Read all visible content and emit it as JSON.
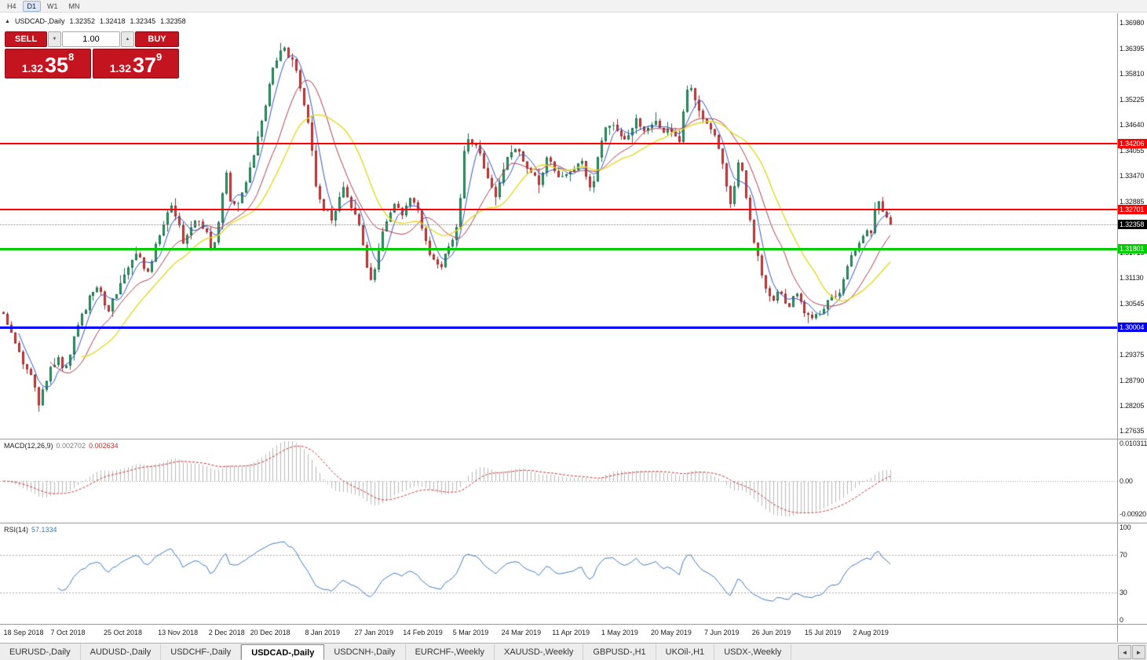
{
  "toolbar": {
    "timeframes": [
      {
        "label": "H4",
        "active": false
      },
      {
        "label": "D1",
        "active": true
      },
      {
        "label": "W1",
        "active": false
      },
      {
        "label": "MN",
        "active": false
      }
    ]
  },
  "header": {
    "collapse_icon": "▲",
    "symbol": "USDCAD-,Daily",
    "open": "1.32352",
    "high": "1.32418",
    "low": "1.32345",
    "close": "1.32358"
  },
  "trade_panel": {
    "sell_label": "SELL",
    "buy_label": "BUY",
    "volume": "1.00",
    "spin_down_icon": "▼",
    "spin_up_icon": "▲",
    "panel_red": "#c41420",
    "sell_price": {
      "prefix": "1.32",
      "big": "35",
      "sup": "8"
    },
    "buy_price": {
      "prefix": "1.32",
      "big": "37",
      "sup": "9"
    }
  },
  "chart": {
    "scale": {
      "max": 1.372,
      "min": 1.2745
    },
    "price_axis_labels": [
      "1.36980",
      "1.36395",
      "1.35810",
      "1.35225",
      "1.34640",
      "1.34055",
      "1.33470",
      "1.32885",
      "1.32300",
      "1.31715",
      "1.31130",
      "1.30545",
      "1.29960",
      "1.29375",
      "1.28790",
      "1.28205",
      "1.27635"
    ],
    "hlines": [
      {
        "value": 1.34206,
        "label": "1.34206",
        "color": "#ff0000",
        "width": 2
      },
      {
        "value": 1.32701,
        "label": "1.32701",
        "color": "#ff0000",
        "width": 2
      },
      {
        "value": 1.31801,
        "label": "1.31801",
        "color": "#00cc00",
        "width": 3
      },
      {
        "value": 1.30004,
        "label": "1.30004",
        "color": "#0000ff",
        "width": 3
      }
    ],
    "current_price": {
      "value": 1.32358,
      "label": "1.32358",
      "badge_bg": "#000000",
      "line_color": "#909090"
    },
    "date_axis": {
      "labels": [
        "18 Sep 2018",
        "7 Oct 2018",
        "25 Oct 2018",
        "13 Nov 2018",
        "2 Dec 2018",
        "20 Dec 2018",
        "8 Jan 2019",
        "27 Jan 2019",
        "14 Feb 2019",
        "5 Mar 2019",
        "24 Mar 2019",
        "11 Apr 2019",
        "1 May 2019",
        "20 May 2019",
        "7 Jun 2019",
        "26 Jun 2019",
        "15 Jul 2019",
        "2 Aug 2019"
      ],
      "fracs": [
        0.0,
        0.073,
        0.135,
        0.197,
        0.252,
        0.301,
        0.36,
        0.418,
        0.473,
        0.527,
        0.584,
        0.64,
        0.695,
        0.753,
        0.81,
        0.866,
        0.924,
        0.978
      ]
    }
  },
  "indicators": {
    "macd": {
      "name": "MACD(12,26,9)",
      "value_main": "0.002702",
      "value_signal": "0.002634",
      "axis": [
        {
          "label": "0.010311",
          "v": 0.010311
        },
        {
          "label": "0.00",
          "v": 0
        },
        {
          "label": "-0.00920",
          "v": -0.0092
        }
      ],
      "range": {
        "max": 0.0115,
        "min": -0.0115
      },
      "colors": {
        "histogram": "#b8b8b8",
        "signal": "#cc2e2e",
        "zero": "#999999"
      }
    },
    "rsi": {
      "name": "RSI(14)",
      "value": "57.1334",
      "period": 14,
      "axis": [
        {
          "label": "100",
          "v": 100
        },
        {
          "label": "70",
          "v": 70
        },
        {
          "label": "30",
          "v": 30
        },
        {
          "label": "0",
          "v": 0
        }
      ],
      "levels": [
        70,
        30
      ],
      "colors": {
        "line": "#3e7bbf",
        "levels": "#cc9999"
      }
    }
  },
  "chart_data": {
    "type": "candlestick",
    "symbol": "USDCAD",
    "timeframe": "Daily",
    "x_range": [
      "18 Sep 2018",
      "13 Aug 2019"
    ],
    "price_range": [
      1.2745,
      1.372
    ],
    "approx_high": 1.3666,
    "approx_low": 1.278,
    "candle_count": 228,
    "last_close": 1.32358,
    "up_color": "#2ea471",
    "up_border": "#1d6f4c",
    "down_color": "#df4242",
    "down_border": "#9e2b2b",
    "moving_averages": [
      {
        "period": 5,
        "color": "#3353c8",
        "width": 1
      },
      {
        "period": 13,
        "color": "#b03a4a",
        "width": 1
      },
      {
        "period": 21,
        "color": "#e3d824",
        "width": 1.4
      }
    ],
    "noise": {
      "seed": 9,
      "close": 0.0016,
      "wick": 0.0022
    },
    "trend_anchors": [
      [
        0.0,
        1.3035
      ],
      [
        0.01,
        1.2975
      ],
      [
        0.022,
        1.292
      ],
      [
        0.032,
        1.288
      ],
      [
        0.04,
        1.2825
      ],
      [
        0.05,
        1.289
      ],
      [
        0.06,
        1.293
      ],
      [
        0.07,
        1.2905
      ],
      [
        0.08,
        1.2985
      ],
      [
        0.095,
        1.306
      ],
      [
        0.105,
        1.31
      ],
      [
        0.118,
        1.3035
      ],
      [
        0.135,
        1.312
      ],
      [
        0.15,
        1.3175
      ],
      [
        0.163,
        1.3125
      ],
      [
        0.178,
        1.323
      ],
      [
        0.19,
        1.329
      ],
      [
        0.203,
        1.3195
      ],
      [
        0.215,
        1.325
      ],
      [
        0.228,
        1.3225
      ],
      [
        0.235,
        1.3165
      ],
      [
        0.245,
        1.3262
      ],
      [
        0.249,
        1.338
      ],
      [
        0.254,
        1.33
      ],
      [
        0.263,
        1.328
      ],
      [
        0.275,
        1.334
      ],
      [
        0.285,
        1.342
      ],
      [
        0.295,
        1.351
      ],
      [
        0.305,
        1.36
      ],
      [
        0.315,
        1.3645
      ],
      [
        0.325,
        1.3615
      ],
      [
        0.335,
        1.3555
      ],
      [
        0.345,
        1.345
      ],
      [
        0.352,
        1.333
      ],
      [
        0.36,
        1.327
      ],
      [
        0.372,
        1.325
      ],
      [
        0.383,
        1.332
      ],
      [
        0.393,
        1.327
      ],
      [
        0.403,
        1.323
      ],
      [
        0.412,
        1.3095
      ],
      [
        0.418,
        1.313
      ],
      [
        0.428,
        1.322
      ],
      [
        0.44,
        1.329
      ],
      [
        0.45,
        1.3255
      ],
      [
        0.46,
        1.33
      ],
      [
        0.47,
        1.3245
      ],
      [
        0.48,
        1.317
      ],
      [
        0.493,
        1.313
      ],
      [
        0.503,
        1.3195
      ],
      [
        0.513,
        1.323
      ],
      [
        0.521,
        1.344
      ],
      [
        0.535,
        1.342
      ],
      [
        0.545,
        1.3345
      ],
      [
        0.555,
        1.33
      ],
      [
        0.567,
        1.339
      ],
      [
        0.58,
        1.3405
      ],
      [
        0.592,
        1.336
      ],
      [
        0.603,
        1.333
      ],
      [
        0.613,
        1.3385
      ],
      [
        0.625,
        1.335
      ],
      [
        0.64,
        1.335
      ],
      [
        0.652,
        1.338
      ],
      [
        0.663,
        1.331
      ],
      [
        0.672,
        1.342
      ],
      [
        0.682,
        1.347
      ],
      [
        0.692,
        1.345
      ],
      [
        0.703,
        1.343
      ],
      [
        0.714,
        1.348
      ],
      [
        0.724,
        1.3445
      ],
      [
        0.734,
        1.348
      ],
      [
        0.745,
        1.345
      ],
      [
        0.753,
        1.3455
      ],
      [
        0.762,
        1.343
      ],
      [
        0.772,
        1.3555
      ],
      [
        0.78,
        1.352
      ],
      [
        0.79,
        1.348
      ],
      [
        0.8,
        1.345
      ],
      [
        0.81,
        1.339
      ],
      [
        0.818,
        1.3275
      ],
      [
        0.826,
        1.335
      ],
      [
        0.83,
        1.34
      ],
      [
        0.838,
        1.328
      ],
      [
        0.848,
        1.318
      ],
      [
        0.858,
        1.309
      ],
      [
        0.866,
        1.306
      ],
      [
        0.875,
        1.309
      ],
      [
        0.884,
        1.304
      ],
      [
        0.893,
        1.3085
      ],
      [
        0.902,
        1.304
      ],
      [
        0.912,
        1.3025
      ],
      [
        0.924,
        1.3045
      ],
      [
        0.932,
        1.308
      ],
      [
        0.941,
        1.306
      ],
      [
        0.95,
        1.313
      ],
      [
        0.96,
        1.318
      ],
      [
        0.969,
        1.321
      ],
      [
        0.978,
        1.322
      ],
      [
        0.985,
        1.33
      ],
      [
        0.991,
        1.3265
      ],
      [
        1.0,
        1.32358
      ]
    ]
  },
  "tabs": {
    "scroll_left": "◄",
    "scroll_right": "►",
    "items": [
      {
        "label": "EURUSD-,Daily",
        "active": false
      },
      {
        "label": "AUDUSD-,Daily",
        "active": false
      },
      {
        "label": "USDCHF-,Daily",
        "active": false
      },
      {
        "label": "USDCAD-,Daily",
        "active": true
      },
      {
        "label": "USDCNH-,Daily",
        "active": false
      },
      {
        "label": "EURCHF-,Weekly",
        "active": false
      },
      {
        "label": "XAUUSD-,Weekly",
        "active": false
      },
      {
        "label": "GBPUSD-,H1",
        "active": false
      },
      {
        "label": "UKOil-,H1",
        "active": false
      },
      {
        "label": "USDX-,Weekly",
        "active": false
      }
    ]
  }
}
